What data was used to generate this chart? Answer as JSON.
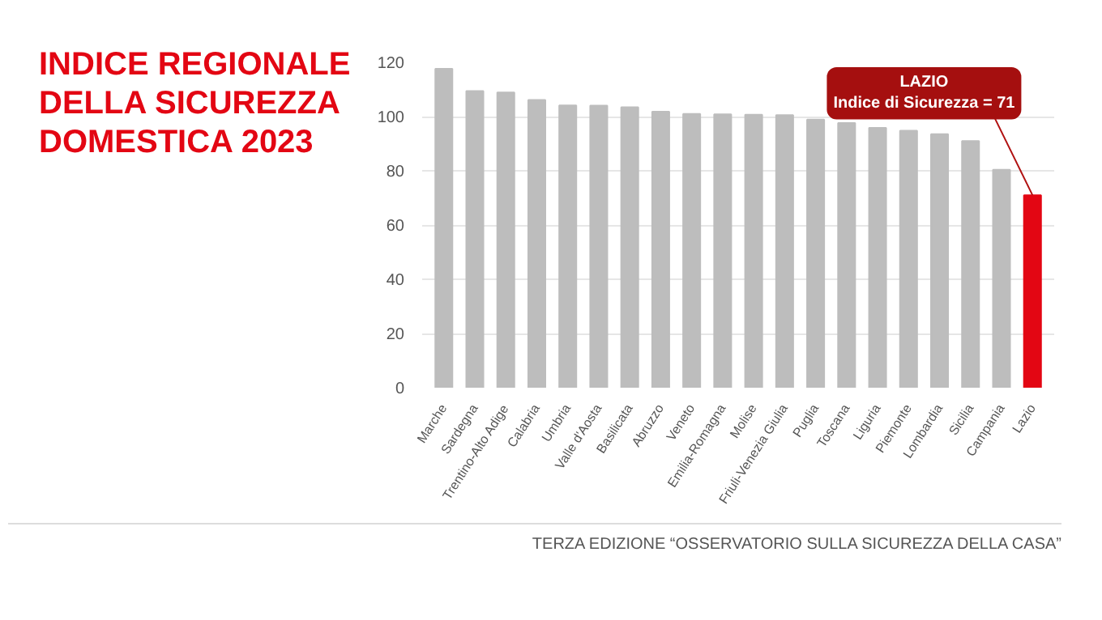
{
  "chart_data": {
    "type": "bar",
    "title": "INDICE REGIONALE\nDELLA SICUREZZA\nDOMESTICA 2023",
    "categories": [
      "Marche",
      "Sardegna",
      "Trentino-Alto Adige",
      "Calabria",
      "Umbria",
      "Valle d'Aosta",
      "Basilicata",
      "Abruzzo",
      "Veneto",
      "Emilia-Romagna",
      "Molise",
      "Friuli-Venezia Giulia",
      "Puglia",
      "Toscana",
      "Liguria",
      "Piemonte",
      "Lombardia",
      "Sicilia",
      "Campania",
      "Lazio"
    ],
    "values": [
      117.6,
      109.4,
      108.9,
      106.1,
      104.1,
      104,
      103.4,
      101.8,
      101,
      100.8,
      100.7,
      100.5,
      98.9,
      97.6,
      95.8,
      94.8,
      93.5,
      91,
      80.4,
      71
    ],
    "colors": [
      "#bdbdbd",
      "#bdbdbd",
      "#bdbdbd",
      "#bdbdbd",
      "#bdbdbd",
      "#bdbdbd",
      "#bdbdbd",
      "#bdbdbd",
      "#bdbdbd",
      "#bdbdbd",
      "#bdbdbd",
      "#bdbdbd",
      "#bdbdbd",
      "#bdbdbd",
      "#bdbdbd",
      "#bdbdbd",
      "#bdbdbd",
      "#bdbdbd",
      "#bdbdbd",
      "#e30613"
    ],
    "ylim": [
      0,
      120
    ],
    "yticks": [
      0,
      20,
      40,
      60,
      80,
      100,
      120
    ],
    "grid": "y",
    "annotations": [
      {
        "text": "LAZIO\nIndice di Sicurezza = 71",
        "x": "Lazio",
        "y": 71
      },
      "TERZA EDIZIONE “OSSERVATORIO SULLA SICUREZZA DELLA CASA”"
    ]
  }
}
